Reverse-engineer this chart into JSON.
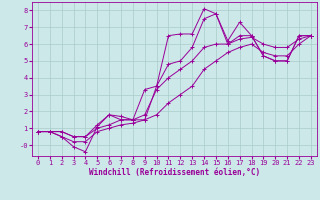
{
  "xlabel": "Windchill (Refroidissement éolien,°C)",
  "bg_color": "#cce8e8",
  "grid_color": "#aacccc",
  "line_color": "#990099",
  "series1": [
    [
      0,
      0.8
    ],
    [
      1,
      0.8
    ],
    [
      2,
      0.8
    ],
    [
      3,
      0.5
    ],
    [
      4,
      0.5
    ],
    [
      5,
      1.2
    ],
    [
      6,
      1.8
    ],
    [
      7,
      1.5
    ],
    [
      8,
      1.5
    ],
    [
      9,
      3.3
    ],
    [
      10,
      3.5
    ],
    [
      11,
      6.5
    ],
    [
      12,
      6.6
    ],
    [
      13,
      6.6
    ],
    [
      14,
      8.1
    ],
    [
      15,
      7.8
    ],
    [
      16,
      6.2
    ],
    [
      17,
      7.3
    ],
    [
      18,
      6.5
    ],
    [
      19,
      5.3
    ],
    [
      20,
      5.0
    ],
    [
      21,
      5.0
    ],
    [
      22,
      6.5
    ],
    [
      23,
      6.5
    ]
  ],
  "series2": [
    [
      0,
      0.8
    ],
    [
      1,
      0.8
    ],
    [
      2,
      0.5
    ],
    [
      3,
      -0.1
    ],
    [
      4,
      -0.4
    ],
    [
      5,
      1.1
    ],
    [
      6,
      1.8
    ],
    [
      7,
      1.7
    ],
    [
      8,
      1.5
    ],
    [
      9,
      1.5
    ],
    [
      10,
      3.5
    ],
    [
      11,
      4.8
    ],
    [
      12,
      5.0
    ],
    [
      13,
      5.8
    ],
    [
      14,
      7.5
    ],
    [
      15,
      7.8
    ],
    [
      16,
      6.0
    ],
    [
      17,
      6.5
    ],
    [
      18,
      6.5
    ],
    [
      19,
      5.3
    ],
    [
      20,
      5.0
    ],
    [
      21,
      5.0
    ],
    [
      22,
      6.5
    ],
    [
      23,
      6.5
    ]
  ],
  "series3": [
    [
      0,
      0.8
    ],
    [
      1,
      0.8
    ],
    [
      2,
      0.8
    ],
    [
      3,
      0.5
    ],
    [
      4,
      0.5
    ],
    [
      5,
      1.0
    ],
    [
      6,
      1.2
    ],
    [
      7,
      1.5
    ],
    [
      8,
      1.5
    ],
    [
      9,
      1.8
    ],
    [
      10,
      3.3
    ],
    [
      11,
      4.0
    ],
    [
      12,
      4.5
    ],
    [
      13,
      5.0
    ],
    [
      14,
      5.8
    ],
    [
      15,
      6.0
    ],
    [
      16,
      6.0
    ],
    [
      17,
      6.3
    ],
    [
      18,
      6.4
    ],
    [
      19,
      6.0
    ],
    [
      20,
      5.8
    ],
    [
      21,
      5.8
    ],
    [
      22,
      6.3
    ],
    [
      23,
      6.5
    ]
  ],
  "series4": [
    [
      0,
      0.8
    ],
    [
      1,
      0.8
    ],
    [
      2,
      0.5
    ],
    [
      3,
      0.2
    ],
    [
      4,
      0.2
    ],
    [
      5,
      0.8
    ],
    [
      6,
      1.0
    ],
    [
      7,
      1.2
    ],
    [
      8,
      1.3
    ],
    [
      9,
      1.5
    ],
    [
      10,
      1.8
    ],
    [
      11,
      2.5
    ],
    [
      12,
      3.0
    ],
    [
      13,
      3.5
    ],
    [
      14,
      4.5
    ],
    [
      15,
      5.0
    ],
    [
      16,
      5.5
    ],
    [
      17,
      5.8
    ],
    [
      18,
      6.0
    ],
    [
      19,
      5.5
    ],
    [
      20,
      5.3
    ],
    [
      21,
      5.3
    ],
    [
      22,
      6.0
    ],
    [
      23,
      6.5
    ]
  ],
  "xlim": [
    -0.5,
    23.5
  ],
  "ylim": [
    -0.65,
    8.5
  ],
  "xticks": [
    0,
    1,
    2,
    3,
    4,
    5,
    6,
    7,
    8,
    9,
    10,
    11,
    12,
    13,
    14,
    15,
    16,
    17,
    18,
    19,
    20,
    21,
    22,
    23
  ],
  "yticks": [
    0,
    1,
    2,
    3,
    4,
    5,
    6,
    7,
    8
  ],
  "ytick_labels": [
    "-0",
    "1",
    "2",
    "3",
    "4",
    "5",
    "6",
    "7",
    "8"
  ],
  "xlabel_fontsize": 5.5,
  "tick_fontsize": 5,
  "line_width": 0.7,
  "marker_size": 2.5
}
